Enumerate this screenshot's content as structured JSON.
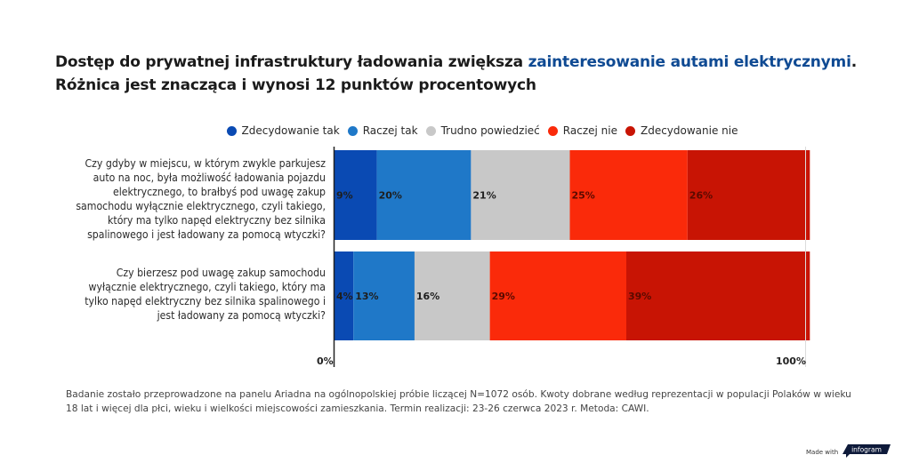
{
  "title": {
    "part1": "Dostęp do prywatnej infrastruktury ładowania zwiększa ",
    "accent": "zainteresowanie autami elektrycznymi",
    "part2": ".",
    "line2": "Różnica jest znacząca i wynosi 12 punktów procentowych"
  },
  "colors": {
    "accent": "#0f4a93",
    "Zdecydowanie tak": "#0a4ab3",
    "Raczej tak": "#1f78c8",
    "Trudno powiedzieć": "#c8c8c8",
    "Raczej nie": "#fa2a0a",
    "Zdecydowanie nie": "#c81404"
  },
  "chart_data": {
    "type": "bar",
    "orientation": "horizontal",
    "stacked": true,
    "percent_stacked": true,
    "title": "Dostęp do prywatnej infrastruktury ładowania zwiększa zainteresowanie autami elektrycznymi. Różnica jest znacząca i wynosi 12 punktów procentowych",
    "categories": [
      "Czy gdyby w miejscu, w którym zwykle parkujesz auto na noc, była możliwość ładowania pojazdu elektrycznego, to brałbyś pod uwagę zakup samochodu wyłącznie elektrycznego, czyli takiego, który ma tylko napęd elektryczny bez silnika spalinowego i jest ładowany za pomocą wtyczki?",
      "Czy bierzesz pod uwagę zakup samochodu wyłącznie elektrycznego, czyli takiego, który ma tylko napęd elektryczny bez silnika spalinowego i jest ładowany za pomocą wtyczki?"
    ],
    "category_lines": [
      [
        "Czy gdyby w miejscu, w którym zwykle parkujesz",
        "auto na noc, była możliwość ładowania pojazdu",
        "elektrycznego, to brałbyś pod uwagę zakup",
        "samochodu wyłącznie elektrycznego, czyli takiego,",
        "który ma tylko napęd elektryczny bez silnika",
        "spalinowego i jest ładowany za pomocą wtyczki?"
      ],
      [
        "Czy bierzesz pod uwagę zakup samochodu",
        "wyłącznie elektrycznego, czyli takiego, który ma",
        "tylko napęd elektryczny bez silnika spalinowego i",
        "jest ładowany za pomocą wtyczki?"
      ]
    ],
    "series": [
      {
        "name": "Zdecydowanie tak",
        "values": [
          9,
          4
        ],
        "labels": [
          "9%",
          "4%"
        ]
      },
      {
        "name": "Raczej tak",
        "values": [
          20,
          13
        ],
        "labels": [
          "20%",
          "13%"
        ]
      },
      {
        "name": "Trudno powiedzieć",
        "values": [
          21,
          16
        ],
        "labels": [
          "21%",
          "16%"
        ]
      },
      {
        "name": "Raczej nie",
        "values": [
          25,
          29
        ],
        "labels": [
          "25%",
          "29%"
        ]
      },
      {
        "name": "Zdecydowanie nie",
        "values": [
          26,
          39
        ],
        "labels": [
          "26%",
          "39%"
        ]
      }
    ],
    "xlim": [
      0,
      100
    ],
    "x_tick_labels": [
      "0%",
      "100%"
    ],
    "legend_position": "top",
    "grid": false,
    "xlabel": "",
    "ylabel": ""
  },
  "footnote": {
    "line1": "Badanie zostało przeprowadzone na panelu Ariadna na ogólnopolskiej próbie liczącej N=1072 osób. Kwoty dobrane według reprezentacji w populacji Polaków w wieku",
    "line2": "18 lat i więcej dla płci, wieku i wielkości miejscowości zamieszkania. Termin realizacji: 23-26 czerwca 2023 r. Metoda: CAWI."
  },
  "branding": {
    "made_with": "Made with",
    "logo_text": "infogram"
  }
}
